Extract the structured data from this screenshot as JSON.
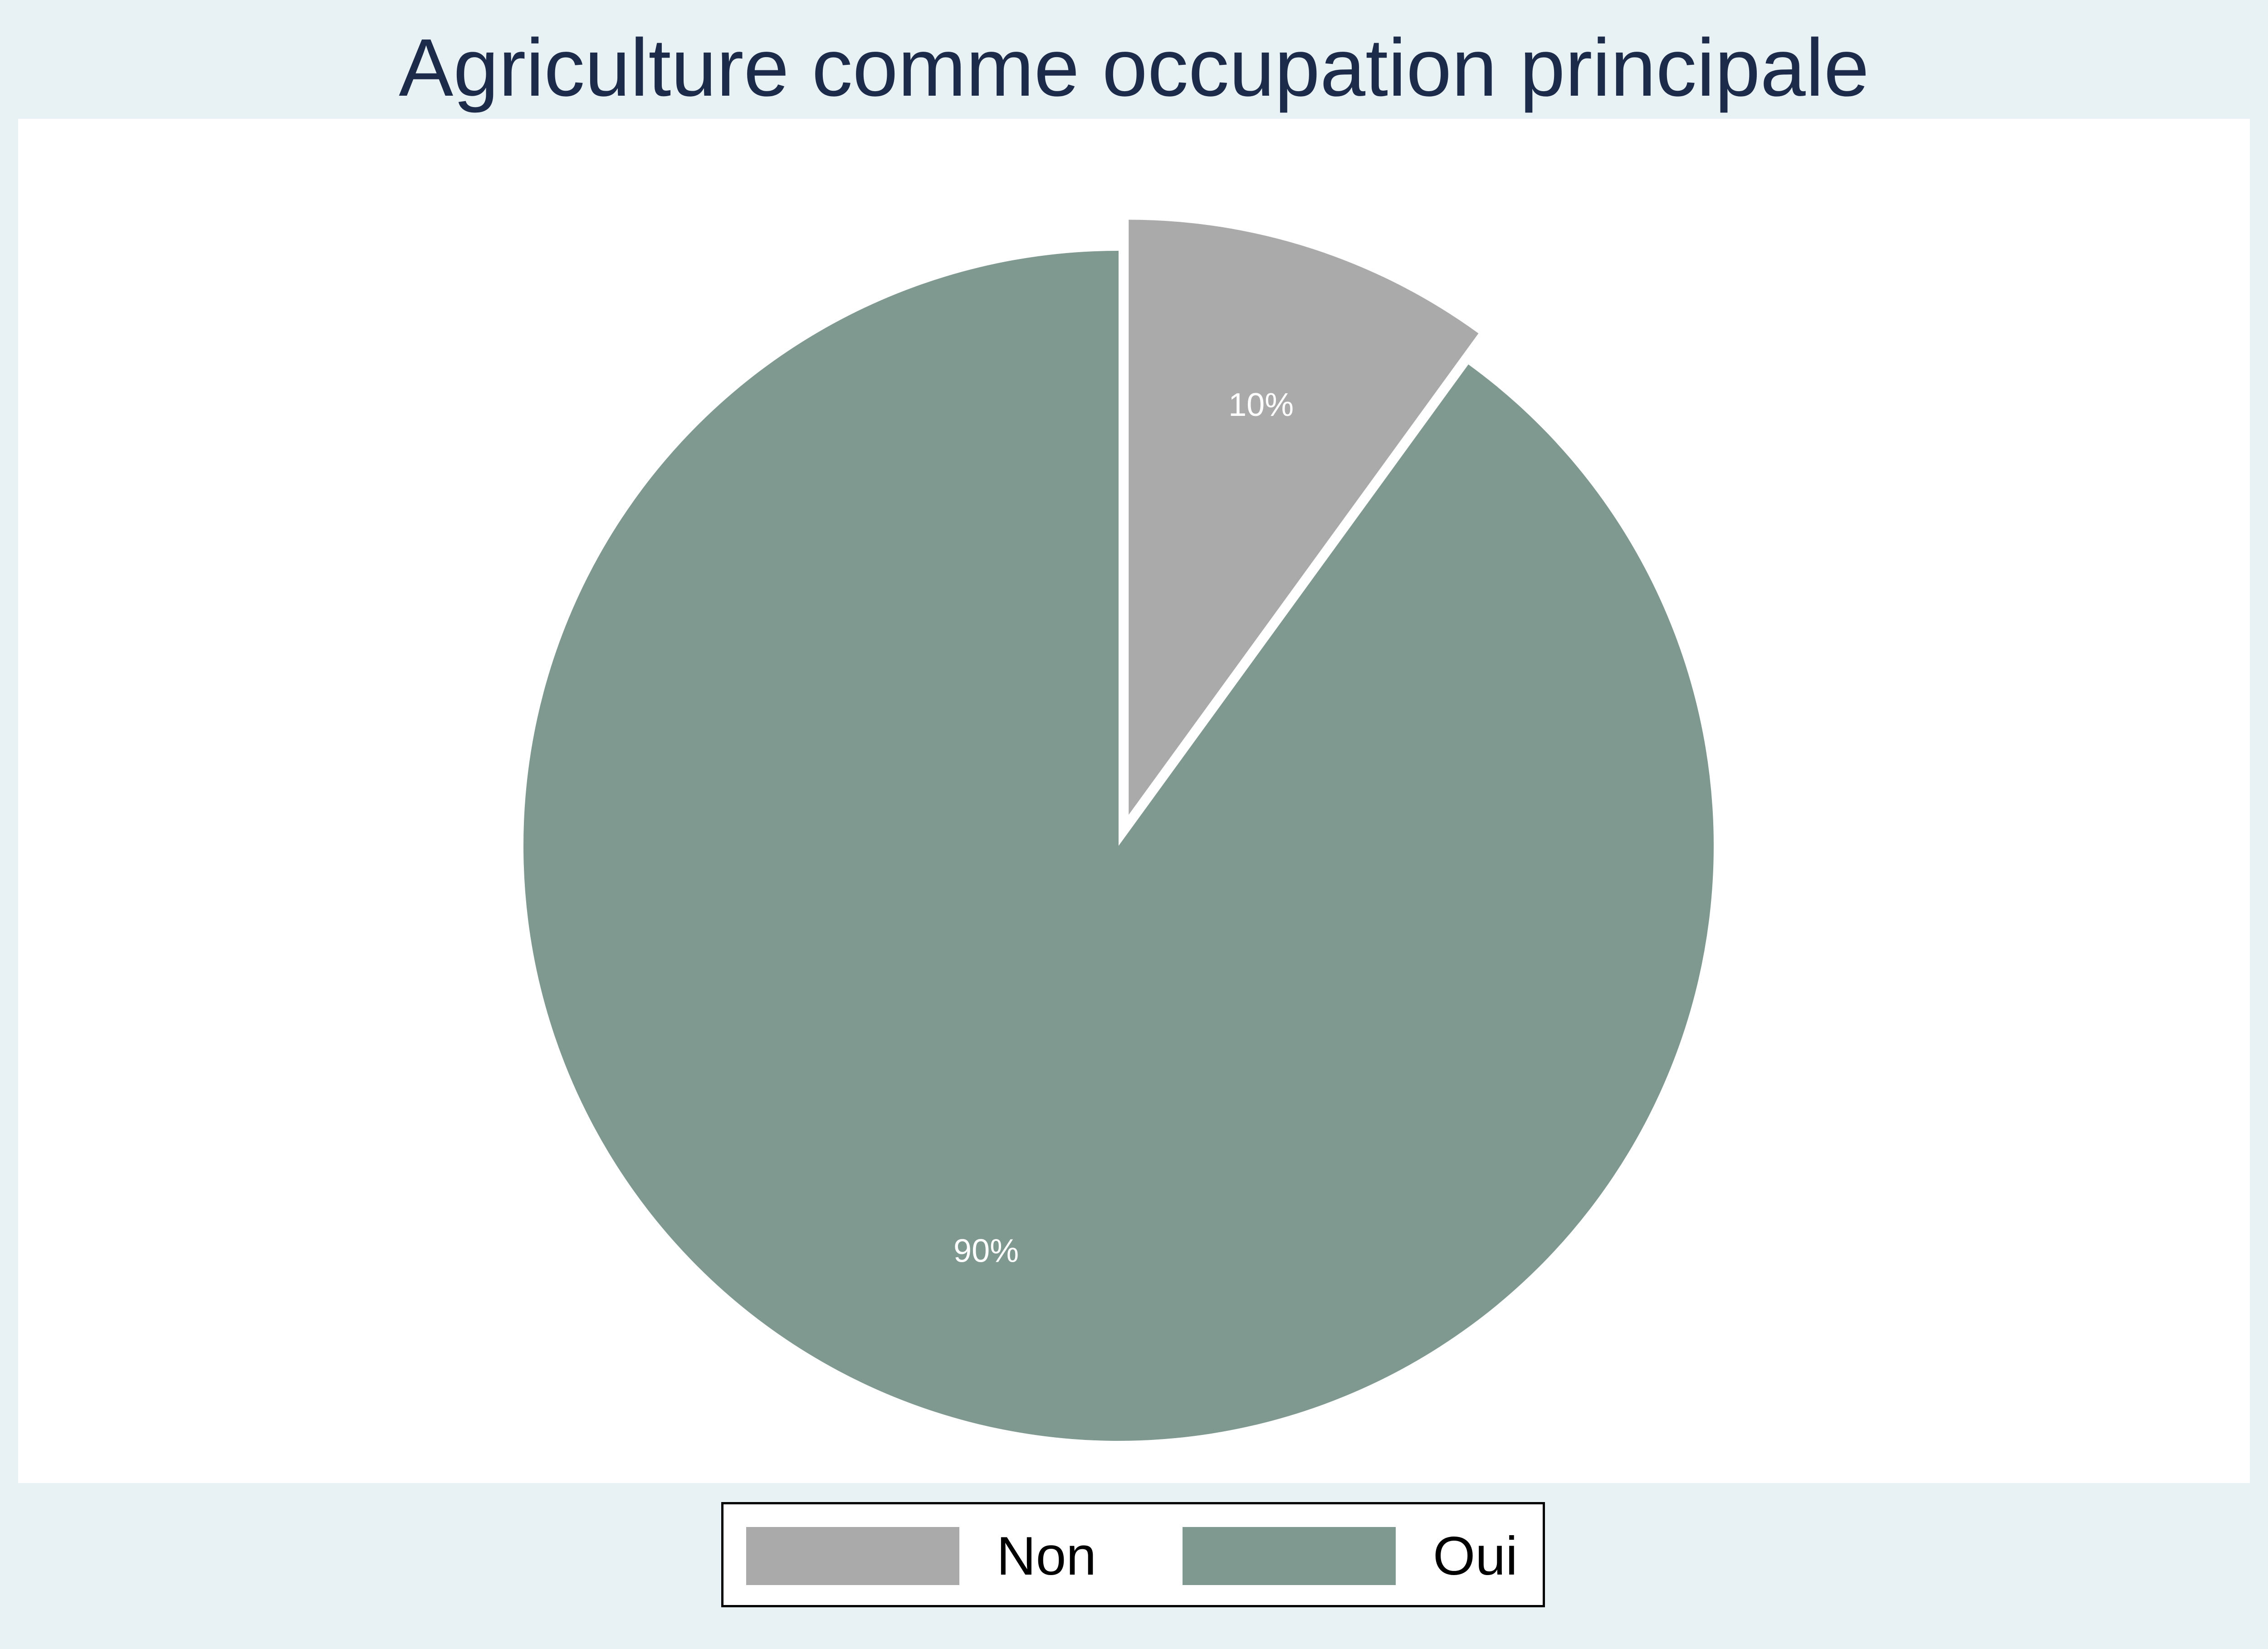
{
  "chart_data": {
    "type": "pie",
    "title": "Agriculture comme occupation principale",
    "categories": [
      "Non",
      "Oui"
    ],
    "values": [
      10,
      90
    ],
    "value_labels": [
      "10%",
      "90%"
    ],
    "colors": [
      "#aaaaaa",
      "#7f9990"
    ],
    "exploded": [
      true,
      false
    ],
    "start_angle": "12 o'clock",
    "direction": "clockwise",
    "legend": {
      "position": "bottom",
      "entries": [
        "Non",
        "Oui"
      ]
    }
  },
  "colors": {
    "background": "#e8f1f3",
    "plot_background": "#ffffff",
    "title": "#1c2b4a"
  }
}
